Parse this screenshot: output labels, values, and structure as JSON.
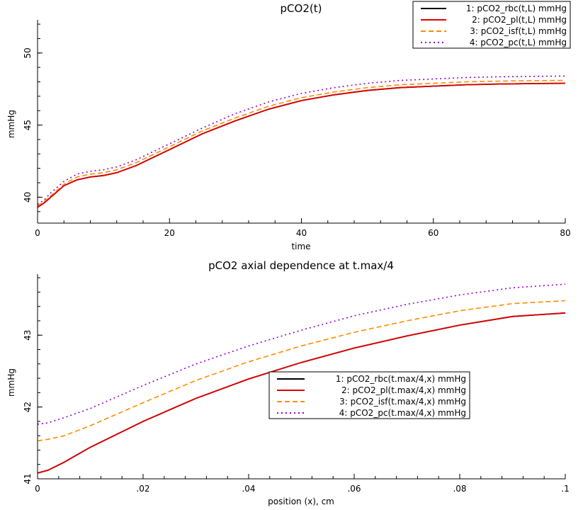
{
  "chart_data": [
    {
      "type": "line",
      "title": "pCO2(t)",
      "xlabel": "time",
      "ylabel": "mmHg",
      "xlim": [
        0,
        80
      ],
      "ylim": [
        38.2,
        52.3
      ],
      "xticks": [
        0,
        20,
        40,
        60,
        80
      ],
      "yticks": [
        40,
        45,
        50
      ],
      "xtick_labels": [
        "0",
        "20",
        "40",
        "60",
        "80"
      ],
      "ytick_labels": [
        "40",
        "45",
        "50"
      ],
      "legend_position": "top-right",
      "series": [
        {
          "name": "1: pCO2_rbc(t,L) mmHg",
          "color": "#000000",
          "dash": "solid",
          "x": [
            0,
            1,
            2,
            4,
            6,
            8,
            10,
            12,
            15,
            20,
            25,
            30,
            35,
            40,
            45,
            50,
            55,
            60,
            65,
            70,
            75,
            80
          ],
          "y": [
            39.3,
            39.6,
            40.0,
            40.8,
            41.2,
            41.4,
            41.5,
            41.7,
            42.2,
            43.3,
            44.4,
            45.3,
            46.1,
            46.7,
            47.1,
            47.4,
            47.6,
            47.7,
            47.8,
            47.85,
            47.88,
            47.9
          ]
        },
        {
          "name": "2: pCO2_pl(t,L) mmHg",
          "color": "#e00000",
          "dash": "solid",
          "x": [
            0,
            1,
            2,
            4,
            6,
            8,
            10,
            12,
            15,
            20,
            25,
            30,
            35,
            40,
            45,
            50,
            55,
            60,
            65,
            70,
            75,
            80
          ],
          "y": [
            39.3,
            39.6,
            40.0,
            40.8,
            41.2,
            41.4,
            41.5,
            41.7,
            42.2,
            43.3,
            44.4,
            45.3,
            46.1,
            46.7,
            47.1,
            47.4,
            47.6,
            47.7,
            47.8,
            47.85,
            47.88,
            47.9
          ]
        },
        {
          "name": "3: pCO2_isf(t,L) mmHg",
          "color": "#ff8c00",
          "dash": "dashed",
          "x": [
            0,
            1,
            2,
            4,
            6,
            8,
            10,
            12,
            15,
            20,
            25,
            30,
            35,
            40,
            45,
            50,
            55,
            60,
            65,
            70,
            75,
            80
          ],
          "y": [
            39.4,
            39.7,
            40.1,
            40.9,
            41.4,
            41.6,
            41.7,
            41.9,
            42.4,
            43.5,
            44.6,
            45.5,
            46.3,
            46.9,
            47.3,
            47.6,
            47.8,
            47.9,
            48.0,
            48.05,
            48.08,
            48.1
          ]
        },
        {
          "name": "4: pCO2_pc(t,L) mmHg",
          "color": "#9400d3",
          "dash": "dotted",
          "x": [
            0,
            1,
            2,
            4,
            6,
            8,
            10,
            12,
            15,
            20,
            25,
            30,
            35,
            40,
            45,
            50,
            55,
            60,
            65,
            70,
            75,
            80
          ],
          "y": [
            39.5,
            39.8,
            40.3,
            41.1,
            41.6,
            41.8,
            41.9,
            42.1,
            42.6,
            43.7,
            44.8,
            45.8,
            46.6,
            47.2,
            47.6,
            47.9,
            48.1,
            48.2,
            48.3,
            48.35,
            48.38,
            48.4
          ]
        }
      ]
    },
    {
      "type": "line",
      "title": "pCO2 axial dependence at t.max/4",
      "xlabel": "position (x), cm",
      "ylabel": "mmHg",
      "xlim": [
        0,
        0.1
      ],
      "ylim": [
        41,
        43.85
      ],
      "xticks": [
        0,
        0.02,
        0.04,
        0.06,
        0.08,
        0.1
      ],
      "yticks": [
        41,
        42,
        43
      ],
      "xtick_labels": [
        "0",
        ".02",
        ".04",
        ".06",
        ".08",
        ".1"
      ],
      "ytick_labels": [
        "41",
        "42",
        "43"
      ],
      "legend_position": "center",
      "series": [
        {
          "name": "1: pCO2_rbc(t.max/4,x) mmHg",
          "color": "#000000",
          "dash": "solid",
          "x": [
            0,
            0.002,
            0.005,
            0.01,
            0.02,
            0.03,
            0.04,
            0.05,
            0.06,
            0.07,
            0.08,
            0.09,
            0.1
          ],
          "y": [
            41.08,
            41.12,
            41.23,
            41.44,
            41.8,
            42.12,
            42.39,
            42.62,
            42.82,
            42.99,
            43.14,
            43.26,
            43.31
          ]
        },
        {
          "name": "2: pCO2_pl(t.max/4,x) mmHg",
          "color": "#e00000",
          "dash": "solid",
          "x": [
            0,
            0.002,
            0.005,
            0.01,
            0.02,
            0.03,
            0.04,
            0.05,
            0.06,
            0.07,
            0.08,
            0.09,
            0.1
          ],
          "y": [
            41.08,
            41.12,
            41.23,
            41.44,
            41.8,
            42.12,
            42.39,
            42.62,
            42.82,
            42.99,
            43.14,
            43.26,
            43.31
          ]
        },
        {
          "name": "3: pCO2_isf(t.max/4,x) mmHg",
          "color": "#ff8c00",
          "dash": "dashed",
          "x": [
            0,
            0.002,
            0.005,
            0.01,
            0.02,
            0.03,
            0.04,
            0.05,
            0.06,
            0.07,
            0.08,
            0.09,
            0.1
          ],
          "y": [
            41.53,
            41.55,
            41.6,
            41.74,
            42.06,
            42.37,
            42.63,
            42.85,
            43.04,
            43.2,
            43.34,
            43.44,
            43.48
          ]
        },
        {
          "name": "4: pCO2_pc(t.max/4,x) mmHg",
          "color": "#9400d3",
          "dash": "dotted",
          "x": [
            0,
            0.002,
            0.005,
            0.01,
            0.02,
            0.03,
            0.04,
            0.05,
            0.06,
            0.07,
            0.08,
            0.09,
            0.1
          ],
          "y": [
            41.76,
            41.78,
            41.85,
            41.98,
            42.3,
            42.6,
            42.85,
            43.07,
            43.27,
            43.43,
            43.56,
            43.66,
            43.71
          ]
        }
      ]
    }
  ]
}
